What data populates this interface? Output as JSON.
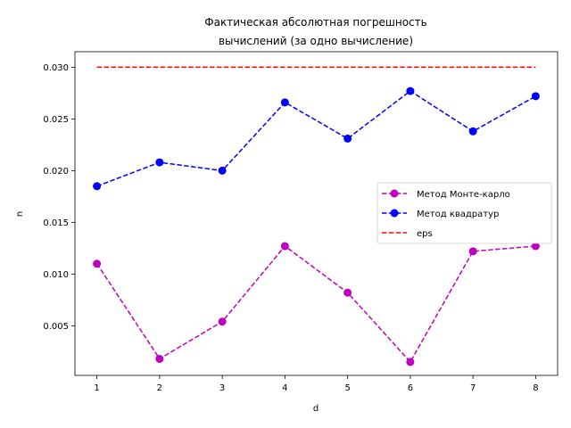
{
  "chart_data": {
    "type": "line",
    "title": [
      "Фактическая абсолютная погрешность",
      "вычислений (за одно вычисление)"
    ],
    "xlabel": "d",
    "ylabel": "n",
    "x": [
      1,
      2,
      3,
      4,
      5,
      6,
      7,
      8
    ],
    "xlim": [
      0.65,
      8.35
    ],
    "ylim": [
      0.0002,
      0.0315
    ],
    "xticks": [
      1,
      2,
      3,
      4,
      5,
      6,
      7,
      8
    ],
    "yticks": [
      0.005,
      0.01,
      0.015,
      0.02,
      0.025,
      0.03
    ],
    "ytick_labels": [
      "0.005",
      "0.010",
      "0.015",
      "0.020",
      "0.025",
      "0.030"
    ],
    "grid": false,
    "legend_position": "center-right",
    "series": [
      {
        "name": "Метод Монте-карло",
        "color": "#bf00bf",
        "marker": "circle",
        "linestyle": "dashed",
        "values": [
          0.011,
          0.0018,
          0.0054,
          0.0127,
          0.0082,
          0.0015,
          0.0122,
          0.0127
        ]
      },
      {
        "name": "Метод квадратур",
        "color": "#0000ff",
        "marker": "circle",
        "linestyle": "dashed",
        "values": [
          0.0185,
          0.0208,
          0.02,
          0.0266,
          0.0231,
          0.0277,
          0.0238,
          0.0272
        ]
      },
      {
        "name": "eps",
        "color": "#ff0000",
        "marker": "none",
        "linestyle": "dashed",
        "values": [
          0.03,
          0.03,
          0.03,
          0.03,
          0.03,
          0.03,
          0.03,
          0.03
        ]
      }
    ]
  }
}
